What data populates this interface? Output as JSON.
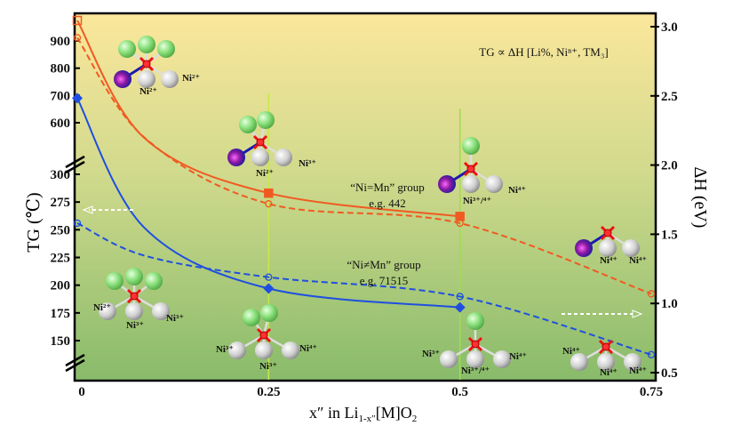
{
  "chart_data": {
    "type": "line",
    "xlabel": "x″ in Li1-x″[M]O2",
    "xlabel_parts": {
      "main": "x″ in Li",
      "sub": "1-x″",
      "rest": "[M]O",
      "sub2": "2"
    },
    "ylabel_left": "TG (℃)",
    "ylabel_right": "ΔH (eV)",
    "x_ticks": [
      "0",
      "0.25",
      "0.5",
      "0.75"
    ],
    "x_tick_values": [
      0,
      0.25,
      0.5,
      0.75
    ],
    "xlim": [
      0,
      0.75
    ],
    "y_left_ticks": [
      900,
      800,
      700,
      600,
      300,
      275,
      250,
      225,
      200,
      175,
      150
    ],
    "y_left_broken_axis": true,
    "y_right_ticks": [
      "3.0",
      "2.5",
      "2.0",
      "1.5",
      "1.0",
      "0.5"
    ],
    "y_right_lim": [
      0.5,
      3.0
    ],
    "grid": false,
    "background": "gradient yellow (top) to green (bottom)",
    "series": [
      {
        "axis": "left",
        "style": "solid",
        "marker": "square",
        "color": "#f05a22",
        "x": [
          0,
          0.25,
          0.5
        ],
        "values": [
          975,
          283,
          262
        ]
      },
      {
        "axis": "right",
        "style": "dashed",
        "marker": "open-circle",
        "color": "#f05a22",
        "x": [
          0,
          0.25,
          0.5,
          0.75
        ],
        "values": [
          2.92,
          1.72,
          1.58,
          1.07
        ]
      },
      {
        "axis": "left",
        "style": "solid",
        "marker": "diamond",
        "color": "#1f4fe0",
        "x": [
          0,
          0.25,
          0.5
        ],
        "values": [
          690,
          197,
          180
        ]
      },
      {
        "axis": "right",
        "style": "dashed",
        "marker": "open-circle",
        "color": "#1f4fe0",
        "x": [
          0,
          0.25,
          0.5,
          0.75
        ],
        "values": [
          1.58,
          1.19,
          1.05,
          0.63
        ]
      }
    ],
    "annotations": {
      "formula": "TG ∝ ΔH [Li%, Niⁿ⁺, TM₃]",
      "group1": "“Ni=Mn” group",
      "group1_eg": "e.g. 442",
      "group2": "“Ni≠Mn” group",
      "group2_eg": "e.g. 71515",
      "ions": [
        [
          "Ni²⁺",
          "Ni²⁺"
        ],
        [
          "Ni²⁺",
          "Ni³⁺"
        ],
        [
          "Ni³⁺/⁴⁺",
          "Ni⁴⁺"
        ],
        [
          "Ni⁴⁺",
          "Ni⁴⁺"
        ],
        [
          "Ni²⁺",
          "Ni³⁺",
          "Ni³⁺"
        ],
        [
          "Ni³⁺",
          "Ni³⁺",
          "Ni⁴⁺"
        ],
        [
          "Ni³⁺",
          "Ni³⁺/⁴⁺",
          "Ni⁴⁺"
        ],
        [
          "Ni⁴⁺",
          "Ni⁴⁺",
          "Ni⁴⁺"
        ]
      ]
    }
  }
}
